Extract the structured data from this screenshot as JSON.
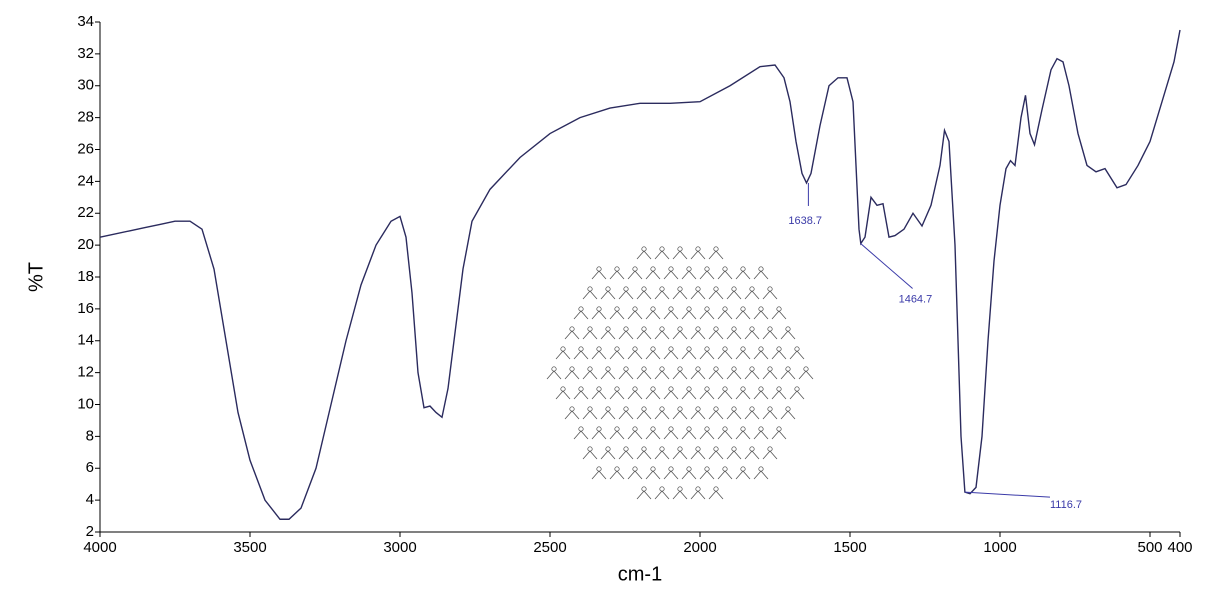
{
  "chart_data": {
    "type": "line",
    "x_label": "cm-1",
    "y_label": "%T",
    "xlim": [
      4000,
      400
    ],
    "xticks": [
      4000,
      3500,
      3000,
      2500,
      2000,
      1500,
      1000,
      500,
      400
    ],
    "ylim": [
      2,
      34
    ],
    "yticks": [
      2,
      4,
      6,
      8,
      10,
      12,
      14,
      16,
      18,
      20,
      22,
      24,
      26,
      28,
      30,
      32,
      34
    ],
    "series": [
      {
        "color": "#2b2b5e",
        "x": [
          4000,
          3900,
          3850,
          3800,
          3750,
          3700,
          3660,
          3620,
          3580,
          3540,
          3500,
          3450,
          3400,
          3370,
          3330,
          3280,
          3230,
          3180,
          3130,
          3080,
          3030,
          3000,
          2980,
          2960,
          2940,
          2920,
          2900,
          2880,
          2860,
          2840,
          2820,
          2790,
          2760,
          2700,
          2600,
          2500,
          2400,
          2300,
          2200,
          2100,
          2000,
          1900,
          1800,
          1750,
          1720,
          1700,
          1680,
          1660,
          1645,
          1630,
          1600,
          1570,
          1540,
          1510,
          1490,
          1480,
          1470,
          1464,
          1450,
          1430,
          1410,
          1390,
          1370,
          1350,
          1320,
          1290,
          1260,
          1230,
          1200,
          1185,
          1170,
          1150,
          1130,
          1117,
          1100,
          1080,
          1060,
          1040,
          1020,
          1000,
          980,
          965,
          950,
          930,
          915,
          900,
          885,
          860,
          830,
          810,
          790,
          770,
          740,
          710,
          680,
          650,
          610,
          580,
          540,
          500,
          460,
          420,
          400
        ],
        "values": [
          20.5,
          20.9,
          21.1,
          21.3,
          21.5,
          21.5,
          21.0,
          18.5,
          14,
          9.5,
          6.5,
          4,
          2.8,
          2.8,
          3.5,
          6,
          10,
          14,
          17.5,
          20,
          21.5,
          21.8,
          20.5,
          17,
          12,
          9.8,
          9.9,
          9.5,
          9.2,
          11,
          14,
          18.5,
          21.5,
          23.5,
          25.5,
          27,
          28,
          28.6,
          28.9,
          28.9,
          29.0,
          30,
          31.2,
          31.3,
          30.5,
          29,
          26.5,
          24.5,
          23.9,
          24.5,
          27.5,
          30,
          30.5,
          30.5,
          29,
          25,
          21,
          20.1,
          20.5,
          23,
          22.5,
          22.6,
          20.5,
          20.6,
          21.0,
          22,
          21.2,
          22.5,
          25,
          27.2,
          26.5,
          20,
          8,
          4.5,
          4.4,
          4.8,
          8,
          14,
          19,
          22.5,
          24.8,
          25.3,
          25,
          28,
          29.4,
          27,
          26.3,
          28.5,
          31,
          31.7,
          31.5,
          30,
          27,
          25,
          24.6,
          24.8,
          23.6,
          23.8,
          25,
          26.5,
          29,
          31.5,
          33.5
        ]
      }
    ],
    "peaks": [
      {
        "x": 1638.7,
        "y": 23.9
      },
      {
        "x": 1464.7,
        "y": 20.1
      },
      {
        "x": 1116.7,
        "y": 4.5
      }
    ],
    "peak_color": "#3a3aa8"
  }
}
